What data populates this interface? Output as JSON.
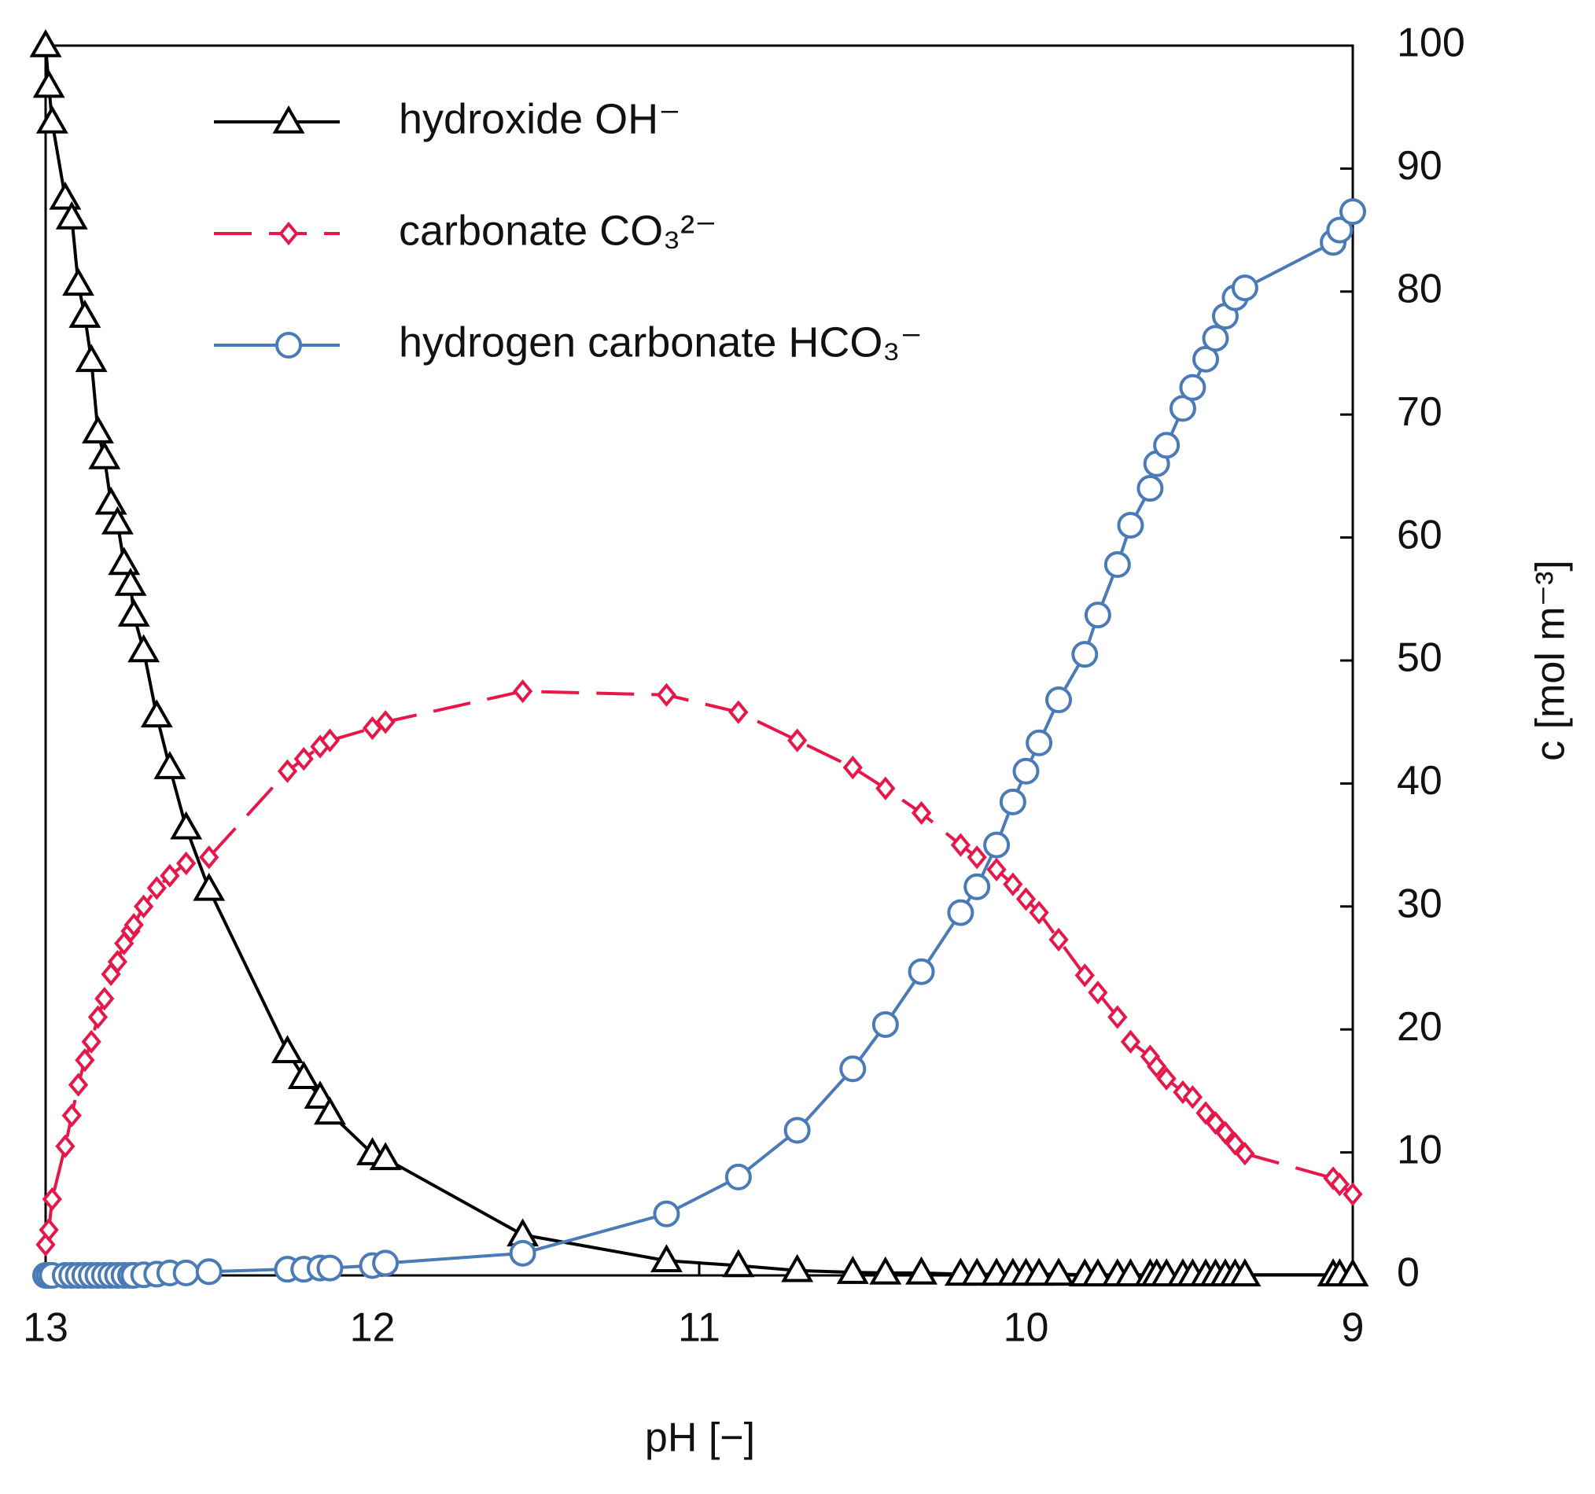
{
  "chart_data": {
    "type": "line",
    "xlabel": "pH [−]",
    "ylabel": "c [mol m⁻³]",
    "xlim": [
      13,
      9
    ],
    "xticks": [
      13,
      12,
      11,
      10,
      9
    ],
    "ylim": [
      0,
      100
    ],
    "yticks": [
      0,
      10,
      20,
      30,
      40,
      50,
      60,
      70,
      80,
      90,
      100
    ],
    "y_axis_side": "right",
    "legend": "upper left",
    "x": [
      13,
      12.99,
      12.98,
      12.94,
      12.92,
      12.9,
      12.88,
      12.86,
      12.84,
      12.82,
      12.8,
      12.78,
      12.76,
      12.74,
      12.73,
      12.7,
      12.66,
      12.62,
      12.57,
      12.5,
      12.26,
      12.21,
      12.16,
      12.13,
      12.0,
      11.96,
      11.54,
      11.1,
      10.88,
      10.7,
      10.53,
      10.43,
      10.32,
      10.2,
      10.15,
      10.09,
      10.04,
      10.0,
      9.96,
      9.9,
      9.82,
      9.78,
      9.72,
      9.68,
      9.62,
      9.6,
      9.57,
      9.52,
      9.49,
      9.45,
      9.42,
      9.39,
      9.36,
      9.33,
      9.06,
      9.04,
      9.0
    ],
    "series": [
      {
        "name": "hydroxide OH⁻",
        "color": "#000000",
        "marker": "triangle",
        "line_style": "solid",
        "values": [
          100,
          96.7,
          93.8,
          87.6,
          86,
          80.6,
          78,
          74.4,
          68.6,
          66.5,
          62.8,
          61.2,
          57.9,
          56.2,
          53.7,
          50.8,
          45.5,
          41.3,
          36.4,
          31.4,
          18.2,
          16.1,
          14.5,
          13.2,
          9.9,
          9.5,
          3.3,
          1.2,
          0.8,
          0.4,
          0.25,
          0.2,
          0.2,
          0.1,
          0.1,
          0.1,
          0.1,
          0.1,
          0.1,
          0.1,
          0.05,
          0.05,
          0.05,
          0.05,
          0.05,
          0.05,
          0.05,
          0.05,
          0.05,
          0.05,
          0.05,
          0.05,
          0.05,
          0.05,
          0.05,
          0.05,
          0.05
        ]
      },
      {
        "name": "carbonate CO₃²⁻",
        "color": "#e8174a",
        "marker": "diamond",
        "line_style": "dashed",
        "values": [
          2.5,
          3.7,
          6.2,
          10.5,
          13,
          15.5,
          17.5,
          19,
          21,
          22.5,
          24.5,
          25.5,
          27,
          28,
          28.5,
          30,
          31.5,
          32.5,
          33.5,
          34,
          41,
          42,
          43,
          43.5,
          44.5,
          45,
          47.5,
          47.2,
          45.8,
          43.5,
          41.3,
          39.6,
          37.6,
          35,
          34,
          33,
          31.8,
          30.6,
          29.5,
          27.3,
          24.4,
          23,
          21,
          19,
          17.8,
          17,
          16,
          14.9,
          14.5,
          13.2,
          12.4,
          11.6,
          10.7,
          9.9,
          7.9,
          7.4,
          6.6
        ]
      },
      {
        "name": "hydrogen carbonate HCO₃⁻",
        "color": "#4a7bb7",
        "marker": "circle",
        "line_style": "solid",
        "values": [
          0,
          0,
          0,
          0,
          0,
          0,
          0,
          0,
          0,
          0,
          0,
          0,
          0,
          0,
          0,
          0.05,
          0.1,
          0.2,
          0.2,
          0.3,
          0.5,
          0.5,
          0.6,
          0.6,
          0.8,
          1.0,
          1.8,
          5,
          8,
          11.8,
          16.8,
          20.4,
          24.7,
          29.5,
          31.6,
          35,
          38.5,
          41,
          43.3,
          46.8,
          50.5,
          53.7,
          57.8,
          61,
          64,
          66,
          67.5,
          70.5,
          72.2,
          74.5,
          76.2,
          78,
          79.5,
          80.3,
          84,
          85,
          86.5
        ]
      }
    ]
  }
}
